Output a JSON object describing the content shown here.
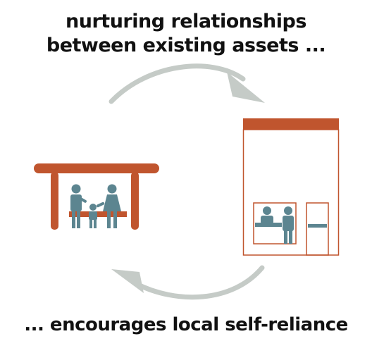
{
  "heading": {
    "line1": "nurturing relationships",
    "line2": "between existing assets ..."
  },
  "footer": {
    "text": "... encourages local self-reliance"
  },
  "colors": {
    "rust": "#c0552e",
    "teal": "#5c8590",
    "arrow": "#c5cbc7",
    "text": "#111111"
  },
  "icons": {
    "shelter": "bus-shelter-family-icon",
    "storefront": "shop-with-clerk-icon",
    "cycle": "circular-arrows-icon"
  }
}
